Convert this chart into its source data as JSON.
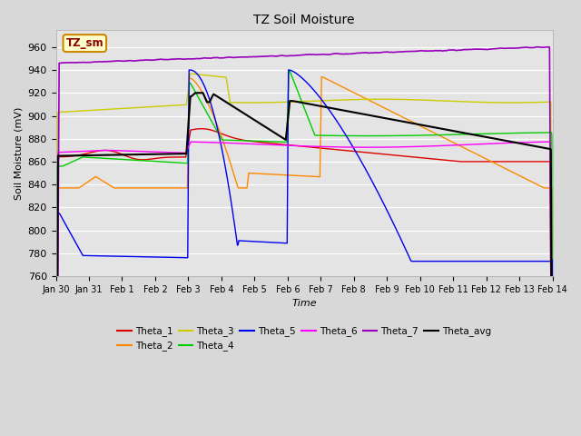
{
  "title": "TZ Soil Moisture",
  "xlabel": "Time",
  "ylabel": "Soil Moisture (mV)",
  "ylim": [
    760,
    975
  ],
  "yticks": [
    760,
    780,
    800,
    820,
    840,
    860,
    880,
    900,
    920,
    940,
    960
  ],
  "label_box": "TZ_sm",
  "colors": {
    "Theta_1": "#dd0000",
    "Theta_2": "#ff8800",
    "Theta_3": "#cccc00",
    "Theta_4": "#00cc00",
    "Theta_5": "#0000ee",
    "Theta_6": "#ff00ff",
    "Theta_7": "#9900bb",
    "Theta_avg": "#000000"
  },
  "tick_labels": [
    "Jan 30",
    "Jan 31",
    "Feb 1",
    "Feb 2",
    "Feb 3",
    "Feb 4",
    "Feb 5",
    "Feb 6",
    "Feb 7",
    "Feb 8",
    "Feb 9",
    "Feb 10",
    "Feb 11",
    "Feb 12",
    "Feb 13",
    "Feb 14"
  ],
  "n_points": 1500
}
